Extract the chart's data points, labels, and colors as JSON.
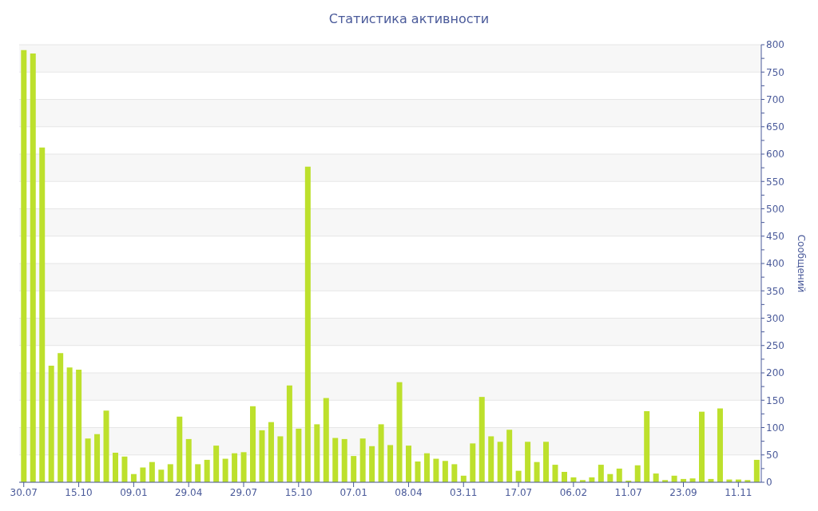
{
  "chart_data": {
    "type": "bar",
    "title": "Статистика активности",
    "y2label": "Сообщений",
    "categories": [
      "30.07",
      null,
      null,
      null,
      null,
      null,
      "15.10",
      null,
      null,
      null,
      null,
      null,
      "09.01",
      null,
      null,
      null,
      null,
      null,
      "29.04",
      null,
      null,
      null,
      null,
      null,
      "29.07",
      null,
      null,
      null,
      null,
      null,
      "15.10",
      null,
      null,
      null,
      null,
      null,
      "07.01",
      null,
      null,
      null,
      null,
      null,
      "08.04",
      null,
      null,
      null,
      null,
      null,
      "03.11",
      null,
      null,
      null,
      null,
      null,
      "17.07",
      null,
      null,
      null,
      null,
      null,
      "06.02",
      null,
      null,
      null,
      null,
      null,
      "11.07",
      null,
      null,
      null,
      null,
      null,
      "23.09",
      null,
      null,
      null,
      null,
      null,
      "11.11",
      null,
      null
    ],
    "series": [
      {
        "axis": "y2",
        "color": "#bde02c",
        "values": [
          790,
          784,
          612,
          213,
          236,
          210,
          206,
          80,
          88,
          131,
          54,
          47,
          15,
          27,
          37,
          23,
          33,
          120,
          79,
          33,
          41,
          67,
          43,
          53,
          55,
          139,
          95,
          110,
          84,
          177,
          98,
          577,
          106,
          154,
          81,
          79,
          48,
          80,
          66,
          106,
          68,
          183,
          67,
          38,
          53,
          43,
          39,
          33,
          12,
          71,
          156,
          84,
          74,
          96,
          21,
          74,
          37,
          74,
          32,
          19,
          9,
          4,
          9,
          32,
          15,
          25,
          3,
          31,
          130,
          16,
          4,
          12,
          6,
          7,
          129,
          6,
          135,
          5,
          5,
          4,
          41
        ]
      }
    ],
    "y2lim": [
      0,
      800
    ],
    "y2ticks": [
      0,
      {
        "value": 25,
        "label": null
      },
      50,
      {
        "value": 75,
        "label": null
      },
      100,
      {
        "value": 125,
        "label": null
      },
      150,
      {
        "value": 175,
        "label": null
      },
      200,
      {
        "value": 225,
        "label": null
      },
      250,
      {
        "value": 275,
        "label": null
      },
      300,
      {
        "value": 325,
        "label": null
      },
      350,
      {
        "value": 375,
        "label": null
      },
      400,
      {
        "value": 425,
        "label": null
      },
      450,
      {
        "value": 475,
        "label": null
      },
      500,
      {
        "value": 525,
        "label": null
      },
      550,
      {
        "value": 575,
        "label": null
      },
      600,
      {
        "value": 625,
        "label": null
      },
      650,
      {
        "value": 675,
        "label": null
      },
      700,
      {
        "value": 725,
        "label": null
      },
      750,
      {
        "value": 775,
        "label": null
      },
      800
    ],
    "grid": "y",
    "legend": false
  }
}
